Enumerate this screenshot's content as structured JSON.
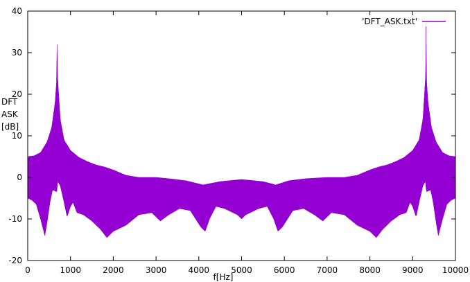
{
  "chart_data": {
    "type": "line",
    "title": "",
    "xlabel": "f[Hz]",
    "ylabel_lines": [
      "DFT",
      "ASK",
      "[dB]"
    ],
    "xlim": [
      0,
      10000
    ],
    "ylim": [
      -20,
      40
    ],
    "xticks": [
      0,
      1000,
      2000,
      3000,
      4000,
      5000,
      6000,
      7000,
      8000,
      9000,
      10000
    ],
    "yticks": [
      -20,
      -10,
      0,
      10,
      20,
      30,
      40
    ],
    "grid": false,
    "legend_position": "top-right",
    "series": [
      {
        "name": "'DFT_ASK.txt'",
        "color": "#9400d3",
        "upper_envelope": [
          [
            0,
            5
          ],
          [
            150,
            5.2
          ],
          [
            300,
            6
          ],
          [
            450,
            8.5
          ],
          [
            560,
            12
          ],
          [
            640,
            18
          ],
          [
            680,
            24
          ],
          [
            690,
            38
          ],
          [
            700,
            24
          ],
          [
            760,
            14
          ],
          [
            850,
            9
          ],
          [
            1000,
            6.5
          ],
          [
            1200,
            4.8
          ],
          [
            1400,
            3.8
          ],
          [
            1600,
            3
          ],
          [
            1800,
            2.5
          ],
          [
            2000,
            1.8
          ],
          [
            2300,
            0.5
          ],
          [
            2600,
            0
          ],
          [
            3000,
            0
          ],
          [
            3300,
            -0.3
          ],
          [
            3700,
            -0.8
          ],
          [
            4100,
            -1.8
          ],
          [
            4500,
            -1
          ],
          [
            5000,
            -0.5
          ],
          [
            5500,
            -1
          ],
          [
            5800,
            -1.8
          ],
          [
            6100,
            -0.8
          ],
          [
            6500,
            -0.3
          ],
          [
            7000,
            0
          ],
          [
            7400,
            0
          ],
          [
            7700,
            0.5
          ],
          [
            8000,
            1.8
          ],
          [
            8200,
            2.5
          ],
          [
            8400,
            3
          ],
          [
            8600,
            3.8
          ],
          [
            8800,
            4.8
          ],
          [
            9000,
            6.5
          ],
          [
            9150,
            9
          ],
          [
            9240,
            14
          ],
          [
            9300,
            24
          ],
          [
            9310,
            38
          ],
          [
            9320,
            24
          ],
          [
            9360,
            18
          ],
          [
            9440,
            12
          ],
          [
            9550,
            8.5
          ],
          [
            9700,
            6
          ],
          [
            9850,
            5.2
          ],
          [
            10000,
            5
          ]
        ],
        "lower_envelope": [
          [
            0,
            -5
          ],
          [
            100,
            -5.5
          ],
          [
            200,
            -6.5
          ],
          [
            300,
            -10
          ],
          [
            400,
            -14
          ],
          [
            450,
            -11
          ],
          [
            520,
            -6
          ],
          [
            580,
            -3
          ],
          [
            680,
            -3.5
          ],
          [
            700,
            -1
          ],
          [
            760,
            -2
          ],
          [
            850,
            -6
          ],
          [
            920,
            -9.5
          ],
          [
            1000,
            -7
          ],
          [
            1060,
            -6
          ],
          [
            1150,
            -8.5
          ],
          [
            1300,
            -9
          ],
          [
            1500,
            -10.5
          ],
          [
            1700,
            -12.5
          ],
          [
            1850,
            -14.5
          ],
          [
            2000,
            -13
          ],
          [
            2300,
            -11.5
          ],
          [
            2600,
            -9
          ],
          [
            2900,
            -8.5
          ],
          [
            3100,
            -10.5
          ],
          [
            3300,
            -9
          ],
          [
            3550,
            -7.5
          ],
          [
            3800,
            -8
          ],
          [
            4050,
            -12
          ],
          [
            4150,
            -13
          ],
          [
            4250,
            -10
          ],
          [
            4400,
            -7
          ],
          [
            4600,
            -7.5
          ],
          [
            4900,
            -9
          ],
          [
            5000,
            -10
          ],
          [
            5100,
            -9
          ],
          [
            5400,
            -7.5
          ],
          [
            5600,
            -7
          ],
          [
            5750,
            -10
          ],
          [
            5850,
            -13
          ],
          [
            5950,
            -12
          ],
          [
            6200,
            -8
          ],
          [
            6450,
            -7.5
          ],
          [
            6700,
            -9
          ],
          [
            6900,
            -10.5
          ],
          [
            7100,
            -8.5
          ],
          [
            7400,
            -9
          ],
          [
            7700,
            -11.5
          ],
          [
            8000,
            -13
          ],
          [
            8150,
            -14.5
          ],
          [
            8300,
            -12.5
          ],
          [
            8500,
            -10.5
          ],
          [
            8700,
            -9
          ],
          [
            8850,
            -8.5
          ],
          [
            8940,
            -6
          ],
          [
            9000,
            -7
          ],
          [
            9080,
            -9.5
          ],
          [
            9150,
            -6
          ],
          [
            9240,
            -2
          ],
          [
            9300,
            -1
          ],
          [
            9320,
            -3.5
          ],
          [
            9420,
            -3
          ],
          [
            9480,
            -6
          ],
          [
            9550,
            -11
          ],
          [
            9600,
            -14
          ],
          [
            9700,
            -10
          ],
          [
            9800,
            -6.5
          ],
          [
            9900,
            -5.5
          ],
          [
            10000,
            -5
          ]
        ]
      }
    ]
  }
}
